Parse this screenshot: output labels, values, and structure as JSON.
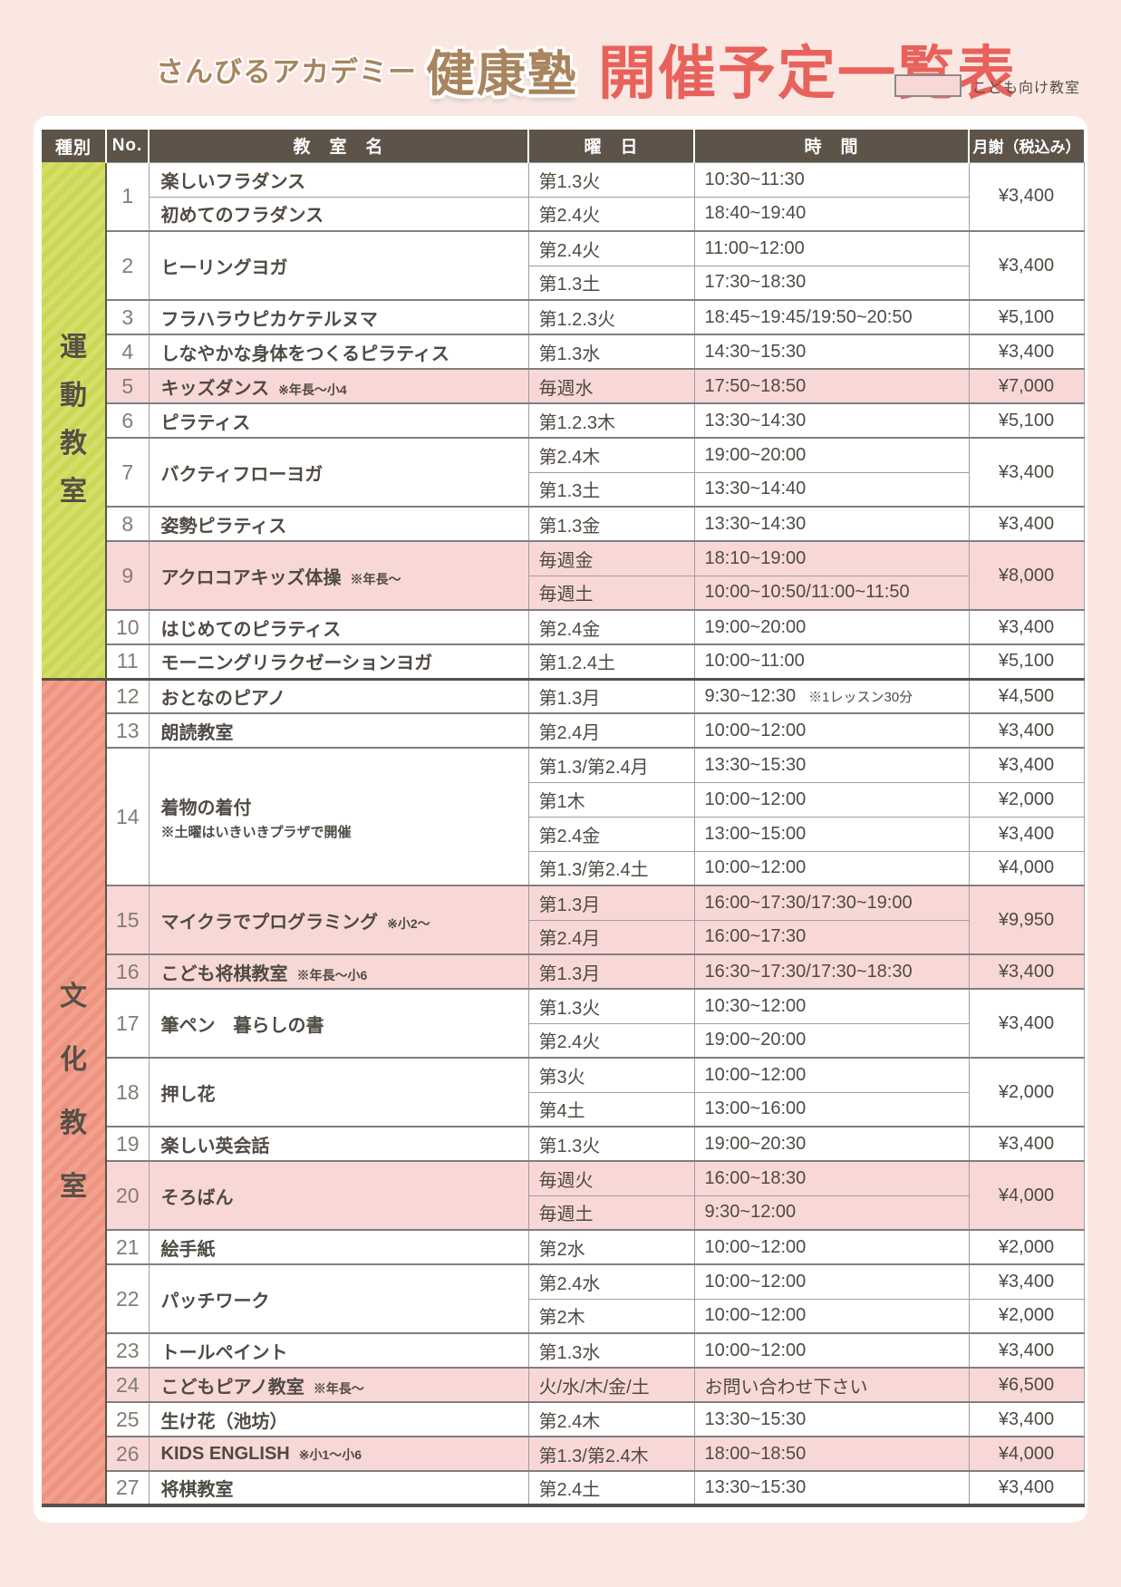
{
  "page": {
    "background": "#fbe7e2",
    "card_background": "#ffffff"
  },
  "header": {
    "brand_prefix": "さんびるアカデミー",
    "brand_name": "健康塾",
    "title": "開催予定一覧表",
    "legend": {
      "label": "こども向け教室",
      "swatch_color": "#f8d8d7"
    }
  },
  "table": {
    "columns": [
      "種別",
      "No.",
      "教　室　名",
      "曜　日",
      "時　間",
      "月謝（税込み）"
    ],
    "kids_row_color": "#f8d8d7",
    "header_color": "#5d5349",
    "sections": [
      {
        "name": "運動教室",
        "label_chars": [
          "運",
          "動",
          "教",
          "室"
        ],
        "stripe_colors": [
          "#cbd755",
          "#d4df69"
        ],
        "groups": [
          {
            "no": "1",
            "kids": false,
            "fee": "¥3,400",
            "entries": [
              {
                "name": "楽しいフラダンス",
                "day": "第1.3火",
                "time": "10:30~11:30"
              },
              {
                "name": "初めてのフラダンス",
                "day": "第2.4火",
                "time": "18:40~19:40"
              }
            ]
          },
          {
            "no": "2",
            "kids": false,
            "name": "ヒーリングヨガ",
            "fee": "¥3,400",
            "entries": [
              {
                "day": "第2.4火",
                "time": "11:00~12:00"
              },
              {
                "day": "第1.3土",
                "time": "17:30~18:30"
              }
            ]
          },
          {
            "no": "3",
            "kids": false,
            "name": "フラハラウピカケテルヌマ",
            "fee": "¥5,100",
            "entries": [
              {
                "day": "第1.2.3火",
                "time": "18:45~19:45/19:50~20:50"
              }
            ]
          },
          {
            "no": "4",
            "kids": false,
            "name": "しなやかな身体をつくるピラティス",
            "fee": "¥3,400",
            "entries": [
              {
                "day": "第1.3水",
                "time": "14:30~15:30"
              }
            ]
          },
          {
            "no": "5",
            "kids": true,
            "name": "キッズダンス",
            "note": "※年長～小4",
            "fee": "¥7,000",
            "entries": [
              {
                "day": "毎週水",
                "time": "17:50~18:50"
              }
            ]
          },
          {
            "no": "6",
            "kids": false,
            "name": "ピラティス",
            "fee": "¥5,100",
            "entries": [
              {
                "day": "第1.2.3木",
                "time": "13:30~14:30"
              }
            ]
          },
          {
            "no": "7",
            "kids": false,
            "name": "バクティフローヨガ",
            "fee": "¥3,400",
            "entries": [
              {
                "day": "第2.4木",
                "time": "19:00~20:00"
              },
              {
                "day": "第1.3土",
                "time": "13:30~14:40"
              }
            ]
          },
          {
            "no": "8",
            "kids": false,
            "name": "姿勢ピラティス",
            "fee": "¥3,400",
            "entries": [
              {
                "day": "第1.3金",
                "time": "13:30~14:30"
              }
            ]
          },
          {
            "no": "9",
            "kids": true,
            "name": "アクロコアキッズ体操",
            "note": "※年長～",
            "fee": "¥8,000",
            "entries": [
              {
                "day": "毎週金",
                "time": "18:10~19:00"
              },
              {
                "day": "毎週土",
                "time": "10:00~10:50/11:00~11:50"
              }
            ]
          },
          {
            "no": "10",
            "kids": false,
            "name": "はじめてのピラティス",
            "fee": "¥3,400",
            "entries": [
              {
                "day": "第2.4金",
                "time": "19:00~20:00"
              }
            ]
          },
          {
            "no": "11",
            "kids": false,
            "name": "モーニングリラクゼーションヨガ",
            "fee": "¥5,100",
            "entries": [
              {
                "day": "第1.2.4土",
                "time": "10:00~11:00"
              }
            ]
          }
        ]
      },
      {
        "name": "文化教室",
        "label_chars": [
          "文",
          "化",
          "教",
          "室"
        ],
        "stripe_colors": [
          "#ee937f",
          "#f2a18e"
        ],
        "groups": [
          {
            "no": "12",
            "kids": false,
            "name": "おとなのピアノ",
            "fee": "¥4,500",
            "entries": [
              {
                "day": "第1.3月",
                "time": "9:30~12:30",
                "time_note": "※1レッスン30分"
              }
            ]
          },
          {
            "no": "13",
            "kids": false,
            "name": "朗読教室",
            "fee": "¥3,400",
            "entries": [
              {
                "day": "第2.4月",
                "time": "10:00~12:00"
              }
            ]
          },
          {
            "no": "14",
            "kids": false,
            "name": "着物の着付",
            "note2": "※土曜はいきいきプラザで開催",
            "entries": [
              {
                "day": "第1.3/第2.4月",
                "time": "13:30~15:30",
                "fee": "¥3,400"
              },
              {
                "day": "第1木",
                "time": "10:00~12:00",
                "fee": "¥2,000"
              },
              {
                "day": "第2.4金",
                "time": "13:00~15:00",
                "fee": "¥3,400"
              },
              {
                "day": "第1.3/第2.4土",
                "time": "10:00~12:00",
                "fee": "¥4,000"
              }
            ]
          },
          {
            "no": "15",
            "kids": true,
            "name": "マイクラでプログラミング",
            "note": "※小2～",
            "fee": "¥9,950",
            "entries": [
              {
                "day": "第1.3月",
                "time": "16:00~17:30/17:30~19:00"
              },
              {
                "day": "第2.4月",
                "time": "16:00~17:30"
              }
            ]
          },
          {
            "no": "16",
            "kids": true,
            "name": "こども将棋教室",
            "note": "※年長～小6",
            "fee": "¥3,400",
            "entries": [
              {
                "day": "第1.3月",
                "time": "16:30~17:30/17:30~18:30"
              }
            ]
          },
          {
            "no": "17",
            "kids": false,
            "name": "筆ペン　暮らしの書",
            "fee": "¥3,400",
            "entries": [
              {
                "day": "第1.3火",
                "time": "10:30~12:00"
              },
              {
                "day": "第2.4火",
                "time": "19:00~20:00"
              }
            ]
          },
          {
            "no": "18",
            "kids": false,
            "name": "押し花",
            "fee": "¥2,000",
            "entries": [
              {
                "day": "第3火",
                "time": "10:00~12:00"
              },
              {
                "day": "第4土",
                "time": "13:00~16:00"
              }
            ]
          },
          {
            "no": "19",
            "kids": false,
            "name": "楽しい英会話",
            "fee": "¥3,400",
            "entries": [
              {
                "day": "第1.3火",
                "time": "19:00~20:30"
              }
            ]
          },
          {
            "no": "20",
            "kids": true,
            "name": "そろばん",
            "fee": "¥4,000",
            "entries": [
              {
                "day": "毎週火",
                "time": "16:00~18:30"
              },
              {
                "day": "毎週土",
                "time": "9:30~12:00"
              }
            ]
          },
          {
            "no": "21",
            "kids": false,
            "name": "絵手紙",
            "fee": "¥2,000",
            "entries": [
              {
                "day": "第2水",
                "time": "10:00~12:00"
              }
            ]
          },
          {
            "no": "22",
            "kids": false,
            "name": "パッチワーク",
            "entries": [
              {
                "day": "第2.4水",
                "time": "10:00~12:00",
                "fee": "¥3,400"
              },
              {
                "day": "第2木",
                "time": "10:00~12:00",
                "fee": "¥2,000"
              }
            ]
          },
          {
            "no": "23",
            "kids": false,
            "name": "トールペイント",
            "fee": "¥3,400",
            "entries": [
              {
                "day": "第1.3水",
                "time": "10:00~12:00"
              }
            ]
          },
          {
            "no": "24",
            "kids": true,
            "name": "こどもピアノ教室",
            "note": "※年長～",
            "fee": "¥6,500",
            "entries": [
              {
                "day": "火/水/木/金/土",
                "time": "お問い合わせ下さい"
              }
            ]
          },
          {
            "no": "25",
            "kids": false,
            "name": "生け花（池坊）",
            "fee": "¥3,400",
            "entries": [
              {
                "day": "第2.4木",
                "time": "13:30~15:30"
              }
            ]
          },
          {
            "no": "26",
            "kids": true,
            "name": "KIDS ENGLISH",
            "note": "※小1～小6",
            "fee": "¥4,000",
            "entries": [
              {
                "day": "第1.3/第2.4木",
                "time": "18:00~18:50"
              }
            ]
          },
          {
            "no": "27",
            "kids": false,
            "name": "将棋教室",
            "fee": "¥3,400",
            "entries": [
              {
                "day": "第2.4土",
                "time": "13:30~15:30"
              }
            ]
          }
        ]
      }
    ]
  }
}
